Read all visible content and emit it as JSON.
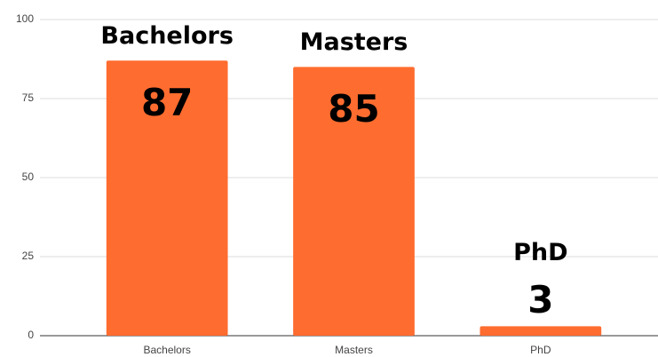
{
  "chart_data": {
    "type": "bar",
    "categories": [
      "Bachelors",
      "Masters",
      "PhD"
    ],
    "values": [
      87,
      85,
      3
    ],
    "color": "#ff6c2f",
    "ylim": [
      0,
      100
    ],
    "yticks": [
      0,
      25,
      50,
      75,
      100
    ],
    "grid": true
  }
}
